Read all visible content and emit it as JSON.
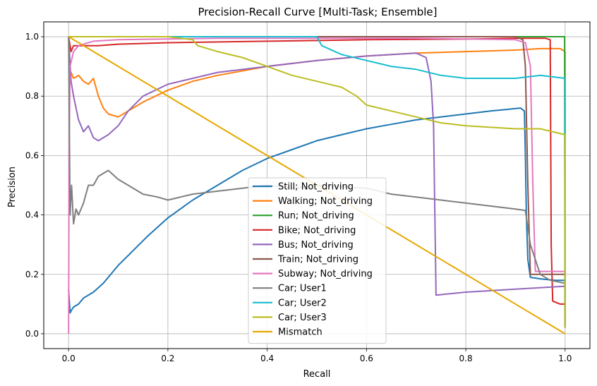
{
  "chart_data": {
    "type": "line",
    "title": "Precision-Recall Curve [Multi-Task; Ensemble]",
    "xlabel": "Recall",
    "ylabel": "Precision",
    "xlim": [
      -0.05,
      1.05
    ],
    "ylim": [
      -0.05,
      1.05
    ],
    "xticks": [
      0.0,
      0.2,
      0.4,
      0.6,
      0.8,
      1.0
    ],
    "yticks": [
      0.0,
      0.2,
      0.4,
      0.6,
      0.8,
      1.0
    ],
    "xtick_labels": [
      "0.0",
      "0.2",
      "0.4",
      "0.6",
      "0.8",
      "1.0"
    ],
    "ytick_labels": [
      "0.0",
      "0.2",
      "0.4",
      "0.6",
      "0.8",
      "1.0"
    ],
    "grid": true,
    "legend_position": "lower-center",
    "series": [
      {
        "name": "Still; Not_driving",
        "color": "#1f77b4",
        "x": [
          0,
          0.003,
          0.006,
          0.01,
          0.02,
          0.03,
          0.05,
          0.07,
          0.1,
          0.13,
          0.16,
          0.2,
          0.25,
          0.3,
          0.35,
          0.4,
          0.45,
          0.5,
          0.55,
          0.6,
          0.65,
          0.7,
          0.75,
          0.8,
          0.85,
          0.88,
          0.91,
          0.918,
          0.92,
          0.922,
          0.925,
          0.93,
          0.95,
          0.98,
          1.0,
          1.0
        ],
        "y": [
          0.15,
          0.07,
          0.08,
          0.09,
          0.1,
          0.12,
          0.14,
          0.17,
          0.23,
          0.28,
          0.33,
          0.39,
          0.45,
          0.5,
          0.55,
          0.59,
          0.62,
          0.65,
          0.67,
          0.69,
          0.705,
          0.72,
          0.73,
          0.74,
          0.75,
          0.755,
          0.76,
          0.75,
          0.6,
          0.4,
          0.25,
          0.19,
          0.185,
          0.18,
          0.18,
          0.02
        ]
      },
      {
        "name": "Walking; Not_driving",
        "color": "#ff7f0e",
        "x": [
          0,
          0.002,
          0.005,
          0.01,
          0.02,
          0.03,
          0.04,
          0.05,
          0.06,
          0.07,
          0.08,
          0.1,
          0.12,
          0.15,
          0.2,
          0.25,
          0.3,
          0.4,
          0.5,
          0.6,
          0.7,
          0.8,
          0.9,
          0.95,
          0.99,
          1.0,
          1.0
        ],
        "y": [
          1.0,
          0.85,
          0.88,
          0.86,
          0.87,
          0.85,
          0.84,
          0.86,
          0.8,
          0.76,
          0.74,
          0.73,
          0.75,
          0.78,
          0.82,
          0.85,
          0.87,
          0.9,
          0.92,
          0.935,
          0.945,
          0.95,
          0.955,
          0.96,
          0.96,
          0.95,
          0.02
        ]
      },
      {
        "name": "Run; Not_driving",
        "color": "#2ca02c",
        "x": [
          0,
          0.5,
          0.999,
          1.0
        ],
        "y": [
          1.0,
          1.0,
          1.0,
          0.02
        ]
      },
      {
        "name": "Bike; Not_driving",
        "color": "#d62728",
        "x": [
          0,
          0.005,
          0.01,
          0.03,
          0.06,
          0.1,
          0.2,
          0.4,
          0.6,
          0.8,
          0.9,
          0.96,
          0.97,
          0.972,
          0.975,
          0.99,
          1.0
        ],
        "y": [
          1.0,
          0.95,
          0.97,
          0.97,
          0.97,
          0.975,
          0.98,
          0.985,
          0.99,
          0.992,
          0.995,
          0.995,
          0.99,
          0.3,
          0.11,
          0.1,
          0.1
        ]
      },
      {
        "name": "Bus; Not_driving",
        "color": "#9467bd",
        "x": [
          0,
          0.005,
          0.01,
          0.02,
          0.03,
          0.04,
          0.05,
          0.06,
          0.08,
          0.1,
          0.12,
          0.15,
          0.2,
          0.3,
          0.4,
          0.5,
          0.6,
          0.7,
          0.72,
          0.73,
          0.735,
          0.74,
          0.8,
          0.9,
          1.0
        ],
        "y": [
          1.0,
          0.85,
          0.8,
          0.72,
          0.68,
          0.7,
          0.66,
          0.65,
          0.67,
          0.7,
          0.75,
          0.8,
          0.84,
          0.88,
          0.9,
          0.92,
          0.935,
          0.945,
          0.93,
          0.85,
          0.7,
          0.13,
          0.14,
          0.15,
          0.16
        ]
      },
      {
        "name": "Train; Not_driving",
        "color": "#8c564b",
        "x": [
          0,
          0.3,
          0.6,
          0.8,
          0.9,
          0.915,
          0.92,
          0.925,
          0.93,
          1.0
        ],
        "y": [
          1.0,
          1.0,
          1.0,
          1.0,
          1.0,
          0.99,
          0.9,
          0.5,
          0.2,
          0.2
        ]
      },
      {
        "name": "Subway; Not_driving",
        "color": "#e377c2",
        "x": [
          0,
          0.001,
          0.003,
          0.01,
          0.02,
          0.05,
          0.1,
          0.3,
          0.5,
          0.7,
          0.9,
          0.92,
          0.93,
          0.935,
          0.94,
          1.0
        ],
        "y": [
          0.0,
          0.6,
          0.9,
          0.95,
          0.97,
          0.985,
          0.99,
          0.995,
          0.995,
          0.995,
          0.99,
          0.98,
          0.9,
          0.5,
          0.21,
          0.21
        ]
      },
      {
        "name": "Car; User1",
        "color": "#7f7f7f",
        "x": [
          0,
          0.003,
          0.006,
          0.01,
          0.015,
          0.02,
          0.03,
          0.04,
          0.05,
          0.06,
          0.08,
          0.1,
          0.12,
          0.15,
          0.18,
          0.2,
          0.25,
          0.3,
          0.35,
          0.4,
          0.45,
          0.5,
          0.55,
          0.6,
          0.65,
          0.7,
          0.75,
          0.8,
          0.85,
          0.9,
          0.92,
          0.93,
          0.95,
          0.97,
          1.0
        ],
        "y": [
          1.0,
          0.4,
          0.5,
          0.37,
          0.42,
          0.4,
          0.44,
          0.5,
          0.5,
          0.53,
          0.55,
          0.52,
          0.5,
          0.47,
          0.46,
          0.45,
          0.47,
          0.48,
          0.49,
          0.5,
          0.49,
          0.5,
          0.495,
          0.49,
          0.47,
          0.46,
          0.45,
          0.44,
          0.43,
          0.42,
          0.415,
          0.3,
          0.2,
          0.18,
          0.17
        ]
      },
      {
        "name": "Car; User2",
        "color": "#17becf",
        "x": [
          0,
          0.2,
          0.4,
          0.5,
          0.51,
          0.55,
          0.6,
          0.65,
          0.7,
          0.75,
          0.8,
          0.85,
          0.9,
          0.95,
          1.0,
          1.0
        ],
        "y": [
          1.0,
          1.0,
          1.0,
          1.0,
          0.97,
          0.94,
          0.92,
          0.9,
          0.89,
          0.87,
          0.86,
          0.86,
          0.86,
          0.87,
          0.86,
          0.67
        ]
      },
      {
        "name": "Car; User3",
        "color": "#bcbd22",
        "x": [
          0,
          0.2,
          0.25,
          0.26,
          0.3,
          0.35,
          0.4,
          0.45,
          0.5,
          0.55,
          0.58,
          0.6,
          0.65,
          0.7,
          0.75,
          0.8,
          0.85,
          0.9,
          0.95,
          1.0,
          1.0
        ],
        "y": [
          1.0,
          1.0,
          0.99,
          0.97,
          0.95,
          0.93,
          0.9,
          0.87,
          0.85,
          0.83,
          0.8,
          0.77,
          0.75,
          0.73,
          0.71,
          0.7,
          0.695,
          0.69,
          0.69,
          0.67,
          0.02
        ]
      },
      {
        "name": "Mismatch",
        "color": "#e6a800",
        "x": [
          0,
          1.0
        ],
        "y": [
          1.0,
          0.0
        ]
      }
    ]
  }
}
